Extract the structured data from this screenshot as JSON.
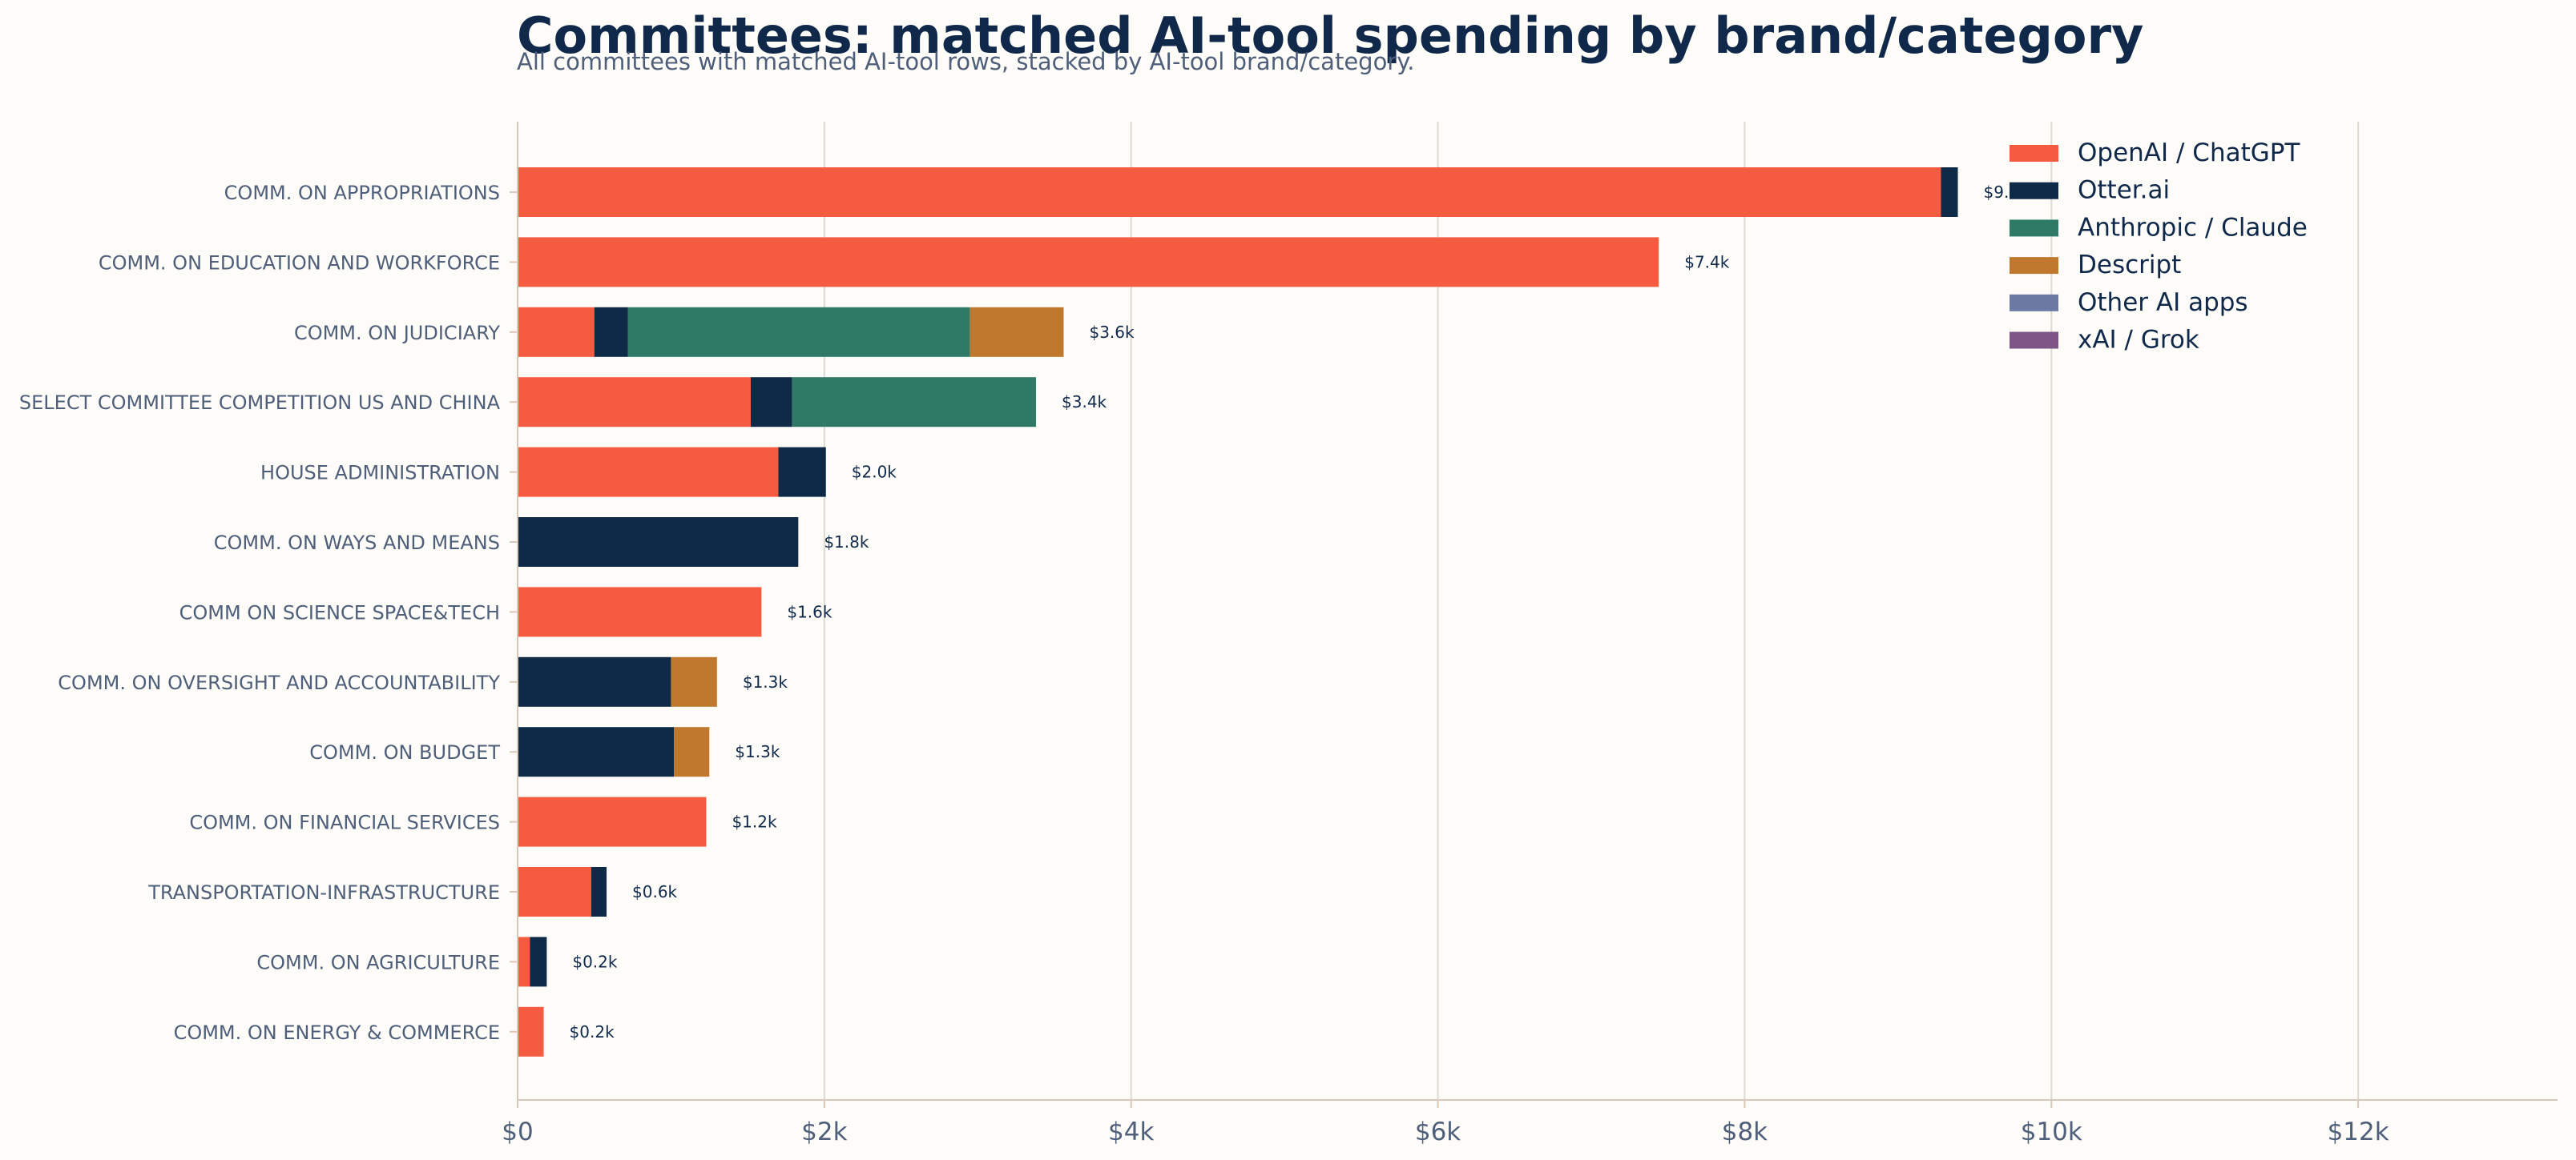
{
  "chart_data": {
    "type": "bar",
    "orientation": "horizontal",
    "stacked": true,
    "title": "Committees: matched AI-tool spending by brand/category",
    "subtitle": "All committees with matched AI-tool rows, stacked by AI-tool brand/category.",
    "xlabel": "",
    "ylabel": "",
    "xlim": [
      0,
      13300
    ],
    "x_ticks": [
      {
        "value": 0,
        "label": "$0"
      },
      {
        "value": 2000,
        "label": "$2k"
      },
      {
        "value": 4000,
        "label": "$4k"
      },
      {
        "value": 6000,
        "label": "$6k"
      },
      {
        "value": 8000,
        "label": "$8k"
      },
      {
        "value": 10000,
        "label": "$10k"
      },
      {
        "value": 12000,
        "label": "$12k"
      }
    ],
    "grid": "vertical",
    "legend_position": "top-right",
    "categories": [
      "COMM. ON APPROPRIATIONS",
      "COMM. ON EDUCATION AND WORKFORCE",
      "COMM. ON JUDICIARY",
      "SELECT COMMITTEE COMPETITION US AND CHINA",
      "HOUSE ADMINISTRATION",
      "COMM. ON WAYS AND MEANS",
      "COMM ON SCIENCE SPACE&TECH",
      "COMM. ON OVERSIGHT AND ACCOUNTABILITY",
      "COMM. ON BUDGET",
      "COMM. ON FINANCIAL SERVICES",
      "TRANSPORTATION-INFRASTRUCTURE",
      "COMM. ON AGRICULTURE",
      "COMM. ON ENERGY & COMMERCE"
    ],
    "series": [
      {
        "name": "OpenAI / ChatGPT",
        "color": "#f45b40",
        "values": [
          9280,
          7440,
          500,
          1520,
          1700,
          0,
          1590,
          0,
          0,
          1230,
          480,
          80,
          170
        ]
      },
      {
        "name": "Otter.ai",
        "color": "#0f2a47",
        "values": [
          110,
          0,
          220,
          270,
          310,
          1830,
          0,
          1000,
          1020,
          0,
          100,
          110,
          0
        ]
      },
      {
        "name": "Anthropic / Claude",
        "color": "#2e7a67",
        "values": [
          0,
          0,
          2230,
          1590,
          0,
          0,
          0,
          0,
          0,
          0,
          0,
          0,
          0
        ]
      },
      {
        "name": "Descript",
        "color": "#c0782e",
        "values": [
          0,
          0,
          610,
          0,
          0,
          0,
          0,
          300,
          230,
          0,
          0,
          0,
          0
        ]
      },
      {
        "name": "Other AI apps",
        "color": "#6b7aa3",
        "values": [
          0,
          0,
          0,
          0,
          0,
          0,
          0,
          0,
          0,
          0,
          0,
          0,
          0
        ]
      },
      {
        "name": "xAI / Grok",
        "color": "#7d5586",
        "values": [
          0,
          0,
          0,
          0,
          0,
          0,
          0,
          0,
          0,
          0,
          0,
          0,
          0
        ]
      }
    ],
    "total_labels": [
      "$9.4k",
      "$7.4k",
      "$3.6k",
      "$3.4k",
      "$2.0k",
      "$1.8k",
      "$1.6k",
      "$1.3k",
      "$1.3k",
      "$1.2k",
      "$0.6k",
      "$0.2k",
      "$0.2k"
    ]
  }
}
